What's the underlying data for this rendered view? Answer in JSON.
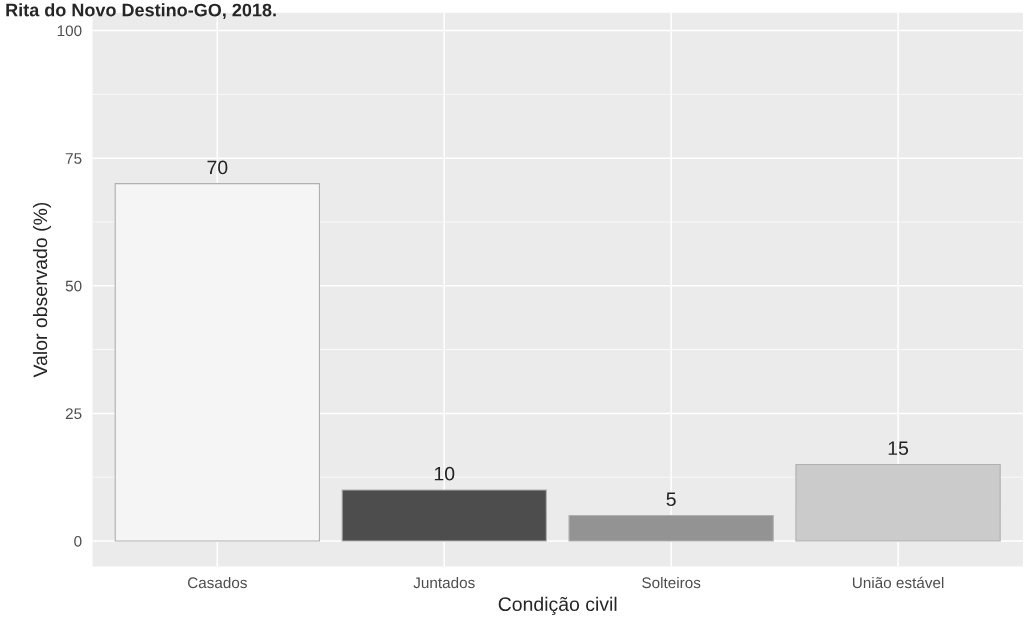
{
  "chart_data": {
    "type": "bar",
    "title": "Rita do Novo Destino-GO, 2018.",
    "xlabel": "Condição civil",
    "ylabel": "Valor observado (%)",
    "categories": [
      "Casados",
      "Juntados",
      "Solteiros",
      "União estável"
    ],
    "values": [
      70,
      10,
      5,
      15
    ],
    "colors": [
      "#f5f5f5",
      "#4d4d4d",
      "#939393",
      "#cbcbcb"
    ],
    "ylim": [
      -5,
      103.5
    ],
    "yticks": [
      0,
      25,
      50,
      75,
      100
    ],
    "grid": true,
    "data_labels": true
  }
}
